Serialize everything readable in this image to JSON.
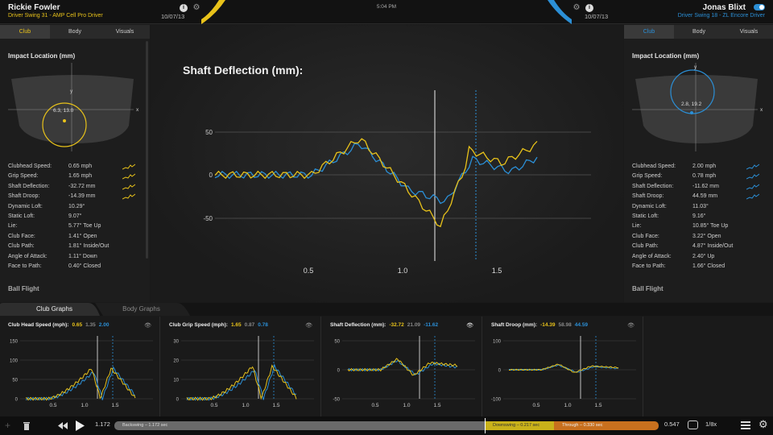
{
  "header": {
    "time": "5:04 PM",
    "left": {
      "name": "Rickie Fowler",
      "swing": "Driver Swing 31 - AMP Cell Pro Driver",
      "date": "10/07/13"
    },
    "right": {
      "name": "Jonas Blixt",
      "swing": "Driver Swing 18 - ZL Encore Driver",
      "date": "10/07/13"
    }
  },
  "colors": {
    "yellow": "#e8c21a",
    "blue": "#2b8fd6",
    "bg": "#1a1a1a",
    "gray": "#a0a0a0"
  },
  "left_panel": {
    "tabs": [
      "Club",
      "Body",
      "Visuals"
    ],
    "active_tab": "Club",
    "impact_title": "Impact Location (mm)",
    "impact_value": "6.3, 13.0",
    "axis_x": "x",
    "axis_y": "y",
    "stats": [
      {
        "label": "Clubhead Speed:",
        "value": "0.65 mph",
        "graph": true
      },
      {
        "label": "Grip Speed:",
        "value": "1.65 mph",
        "graph": true
      },
      {
        "label": "Shaft Deflection:",
        "value": "-32.72 mm",
        "graph": true
      },
      {
        "label": "Shaft Droop:",
        "value": "-14.39 mm",
        "graph": true
      },
      {
        "label": "Dynamic Loft:",
        "value": "10.29°",
        "graph": false
      },
      {
        "label": "Static Loft:",
        "value": "9.07°",
        "graph": false
      },
      {
        "label": "Lie:",
        "value": "5.77° Toe Up",
        "graph": false
      },
      {
        "label": "Club Face:",
        "value": "1.41° Open",
        "graph": false
      },
      {
        "label": "Club Path:",
        "value": "1.81° Inside/Out",
        "graph": false
      },
      {
        "label": "Angle of Attack:",
        "value": "1.11° Down",
        "graph": false
      },
      {
        "label": "Face to Path:",
        "value": "0.40° Closed",
        "graph": false
      }
    ],
    "ball_flight": "Ball Flight"
  },
  "right_panel": {
    "tabs": [
      "Club",
      "Body",
      "Visuals"
    ],
    "active_tab": "Club",
    "impact_title": "Impact Location (mm)",
    "impact_value": "2.8, 19.2",
    "axis_x": "x",
    "axis_y": "y",
    "stats": [
      {
        "label": "Clubhead Speed:",
        "value": "2.00 mph",
        "graph": true
      },
      {
        "label": "Grip Speed:",
        "value": "0.78 mph",
        "graph": true
      },
      {
        "label": "Shaft Deflection:",
        "value": "-11.62 mm",
        "graph": true
      },
      {
        "label": "Shaft Droop:",
        "value": "44.59 mm",
        "graph": true
      },
      {
        "label": "Dynamic Loft:",
        "value": "11.03°",
        "graph": false
      },
      {
        "label": "Static Loft:",
        "value": "9.16°",
        "graph": false
      },
      {
        "label": "Lie:",
        "value": "10.85° Toe Up",
        "graph": false
      },
      {
        "label": "Club Face:",
        "value": "3.22° Open",
        "graph": false
      },
      {
        "label": "Club Path:",
        "value": "4.87° Inside/Out",
        "graph": false
      },
      {
        "label": "Angle of Attack:",
        "value": "2.40° Up",
        "graph": false
      },
      {
        "label": "Face to Path:",
        "value": "1.66° Closed",
        "graph": false
      }
    ],
    "ball_flight": "Ball Flight"
  },
  "main_chart": {
    "title": "Shaft Deflection (mm):",
    "y_ticks": [
      "50",
      "0",
      "-50"
    ],
    "x_ticks": [
      "0.5",
      "1.0",
      "1.5"
    ]
  },
  "bottom_tabs": [
    "Club Graphs",
    "Body Graphs"
  ],
  "active_bottom_tab": "Club Graphs",
  "mini_charts": [
    {
      "title": "Club Head Speed (mph):",
      "v1": "0.65",
      "v2": "1.35",
      "v3": "2.00",
      "y_ticks": [
        "150",
        "100",
        "50",
        "0"
      ],
      "x_ticks": [
        "0.5",
        "1.0",
        "1.5"
      ]
    },
    {
      "title": "Club Grip Speed (mph):",
      "v1": "1.65",
      "v2": "0.87",
      "v3": "0.78",
      "y_ticks": [
        "30",
        "20",
        "10",
        "0"
      ],
      "x_ticks": [
        "0.5",
        "1.0",
        "1.5"
      ]
    },
    {
      "title": "Shaft Deflection (mm):",
      "v1": "-32.72",
      "v2": "21.09",
      "v3": "-11.62",
      "y_ticks": [
        "50",
        "0",
        "-50"
      ],
      "x_ticks": [
        "0.5",
        "1.0",
        "1.5"
      ]
    },
    {
      "title": "Shaft Droop (mm):",
      "v1": "-14.39",
      "v2": "58.98",
      "v3": "44.59",
      "y_ticks": [
        "100",
        "0",
        "-100"
      ],
      "x_ticks": [
        "0.5",
        "1.0",
        "1.5"
      ]
    }
  ],
  "playback": {
    "start": "1.172",
    "end": "0.547",
    "speed": "1/8x",
    "phases": [
      {
        "label": "Backswing – 1.172 sec"
      },
      {
        "label": "Downswing – 0.217 sec"
      },
      {
        "label": "Through – 0.330 sec"
      }
    ]
  }
}
